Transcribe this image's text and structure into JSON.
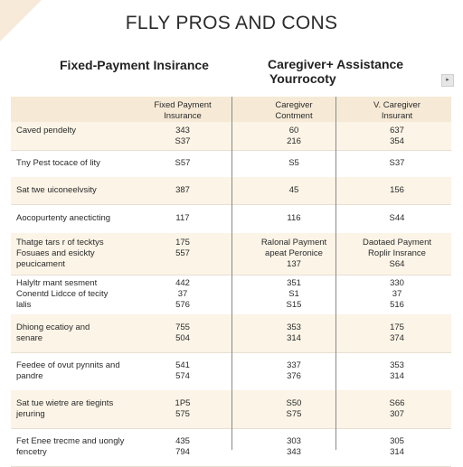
{
  "title": "FLLY PROS AND CONS",
  "left_heading": "Fixed-Payment Insirance",
  "right_heading": [
    "Caregiver+ Assistance",
    "Yourrocoty"
  ],
  "corner_button": "▸",
  "columns": [
    "",
    "Fixed Payment\nInsurance",
    "Caregiver\nContment",
    "V. Caregiver\nInsurant"
  ],
  "rows": [
    {
      "label": [
        "Caved pendelty"
      ],
      "v1": [
        "343",
        "S37"
      ],
      "v2": [
        "60",
        "216"
      ],
      "v3": [
        "637",
        "354"
      ]
    },
    {
      "label": [
        "Tny Pest tocace of lity"
      ],
      "v1": [
        "S57"
      ],
      "v2": [
        "S5"
      ],
      "v3": [
        "S37"
      ]
    },
    {
      "label": [
        "Sat twe uiconeelvsity"
      ],
      "v1": [
        "387"
      ],
      "v2": [
        "45"
      ],
      "v3": [
        "156"
      ]
    },
    {
      "label": [
        "Aocopurtenty anecticting"
      ],
      "v1": [
        "117"
      ],
      "v2": [
        "116"
      ],
      "v3": [
        "S44"
      ]
    },
    {
      "label": [
        "Thatge tars r of tecktys",
        "Fosuaes and esickty",
        "peucicament"
      ],
      "v1": [
        "",
        "175",
        "557"
      ],
      "v2": [
        "Ralonal Payment",
        "apeat Peronice",
        "137"
      ],
      "v3": [
        "Daotaed Payment",
        "Roplir Insrance",
        "S64"
      ]
    },
    {
      "label": [
        "Halyltr mant sesment",
        "Conentd Lidcce of tecity",
        "lalis"
      ],
      "v1": [
        "442",
        "37",
        "576"
      ],
      "v2": [
        "351",
        "S1",
        "S15"
      ],
      "v3": [
        "330",
        "37",
        "516"
      ]
    },
    {
      "label": [
        "Dhiong ecatioy and",
        "senare"
      ],
      "v1": [
        "755",
        "504"
      ],
      "v2": [
        "353",
        "314"
      ],
      "v3": [
        "175",
        "374"
      ]
    },
    {
      "label": [
        "Feedee of ovut pynnits and",
        "pandre"
      ],
      "v1": [
        "541",
        "574"
      ],
      "v2": [
        "337",
        "376"
      ],
      "v3": [
        "353",
        "314"
      ]
    },
    {
      "label": [
        "Sat tue wietre are tiegints",
        "jeruring"
      ],
      "v1": [
        "1P5",
        "575"
      ],
      "v2": [
        "S50",
        "S75"
      ],
      "v3": [
        "S66",
        "307"
      ]
    },
    {
      "label": [
        "Fet Enee trecme and uongly",
        "fencetry"
      ],
      "v1": [
        "435",
        "794"
      ],
      "v2": [
        "303",
        "343"
      ],
      "v3": [
        "305",
        "314"
      ]
    }
  ]
}
